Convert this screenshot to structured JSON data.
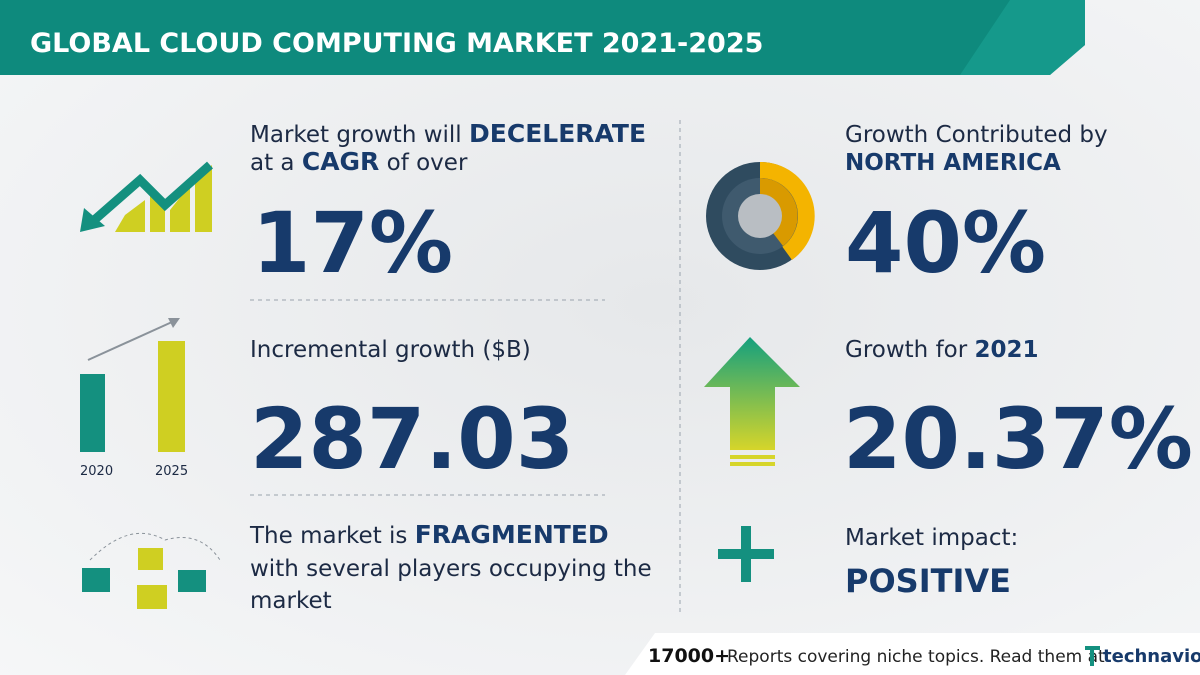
{
  "header": {
    "title": "GLOBAL CLOUD COMPUTING MARKET 2021-2025"
  },
  "left": {
    "cagr": {
      "line1": [
        "Market growth will",
        "DECELERATE"
      ],
      "line2": [
        "at a",
        "CAGR",
        "of over"
      ],
      "value": "17%"
    },
    "incremental": {
      "label": "Incremental growth ($B)",
      "value": "287.03",
      "icon_labels": [
        "2020",
        "2025"
      ]
    },
    "structure": {
      "line1": [
        "The market is",
        "FRAGMENTED"
      ],
      "line2": "with several players occupying the",
      "line3": "market"
    }
  },
  "right": {
    "region": {
      "label": "Growth Contributed by",
      "name": "NORTH AMERICA",
      "value": "40%"
    },
    "yoy": {
      "label": "Growth for",
      "year": "2021",
      "value": "20.37%"
    },
    "impact": {
      "label": "Market impact:",
      "value": "POSITIVE"
    }
  },
  "footer": {
    "count": "17000+",
    "text": "Reports covering niche topics. Read them at",
    "brand": "technavio"
  }
}
